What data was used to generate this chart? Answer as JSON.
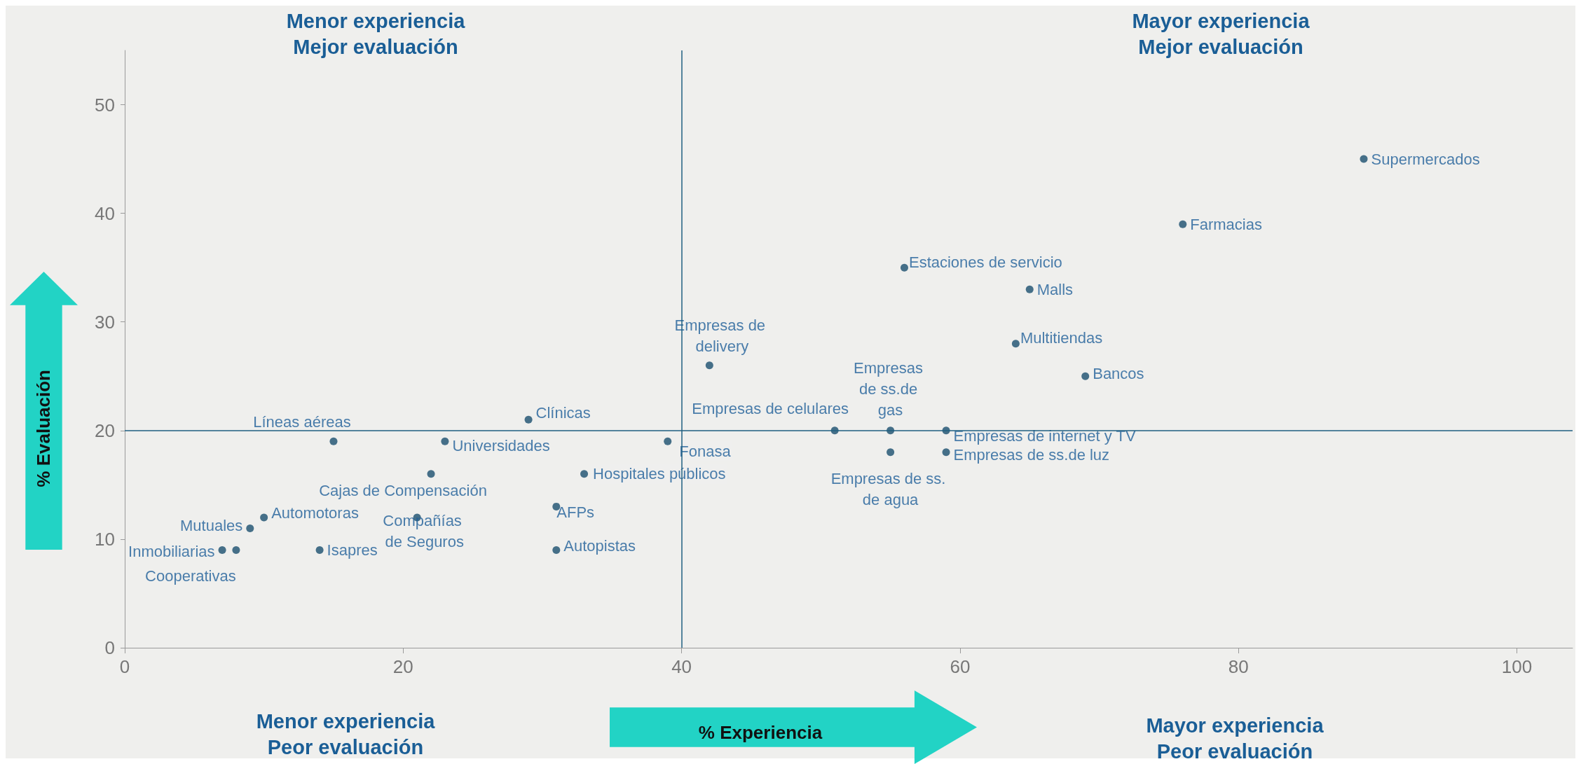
{
  "chart_data": {
    "type": "scatter",
    "xlabel": "% Experiencia",
    "ylabel": "% Evaluación",
    "annotations": [
      "Menor experiencia Mejor evaluación",
      "Mayor experiencia Mejor evaluación",
      "Menor experiencia Peor evaluación",
      "Mayor experiencia Peor evaluación"
    ],
    "xlim": [
      0,
      104
    ],
    "ylim": [
      0,
      55
    ],
    "xticks": [
      0,
      20,
      40,
      60,
      80,
      100
    ],
    "yticks": [
      0,
      10,
      20,
      30,
      40,
      50
    ],
    "grid": false,
    "marker": "circle",
    "ref_lines": [
      {
        "axis": "x",
        "value": 40,
        "color": "#1f5f80"
      },
      {
        "axis": "y",
        "value": 20,
        "color": "#1f5f80"
      }
    ],
    "series": [
      {
        "name": "Supermercados",
        "color": "#1a4f6e",
        "x": [
          89
        ],
        "values": [
          45
        ]
      },
      {
        "name": "Farmacias",
        "color": "#1a4f6e",
        "x": [
          76
        ],
        "values": [
          39
        ]
      },
      {
        "name": "Estaciones de servicio",
        "color": "#1a4f6e",
        "x": [
          56
        ],
        "values": [
          35
        ]
      },
      {
        "name": "Malls",
        "color": "#1a4f6e",
        "x": [
          65
        ],
        "values": [
          33
        ]
      },
      {
        "name": "Multitiendas",
        "color": "#1a4f6e",
        "x": [
          64
        ],
        "values": [
          28
        ]
      },
      {
        "name": "Bancos",
        "color": "#1a4f6e",
        "x": [
          69
        ],
        "values": [
          25
        ]
      },
      {
        "name": "Empresas de delivery",
        "color": "#1a4f6e",
        "x": [
          42
        ],
        "values": [
          26
        ]
      },
      {
        "name": "Empresas de celulares",
        "color": "#1a4f6e",
        "x": [
          51
        ],
        "values": [
          20
        ]
      },
      {
        "name": "Empresas de ss.de gas",
        "color": "#1a4f6e",
        "x": [
          55
        ],
        "values": [
          20
        ]
      },
      {
        "name": "Empresas de internet y TV",
        "color": "#1a4f6e",
        "x": [
          59
        ],
        "values": [
          20
        ]
      },
      {
        "name": "Empresas de ss.de luz",
        "color": "#1a4f6e",
        "x": [
          59
        ],
        "values": [
          18
        ]
      },
      {
        "name": "Empresas de ss. de agua",
        "color": "#1a4f6e",
        "x": [
          55
        ],
        "values": [
          18
        ]
      },
      {
        "name": "Fonasa",
        "color": "#1a4f6e",
        "x": [
          39
        ],
        "values": [
          19
        ]
      },
      {
        "name": "Clínicas",
        "color": "#1a4f6e",
        "x": [
          29
        ],
        "values": [
          21
        ]
      },
      {
        "name": "Universidades",
        "color": "#1a4f6e",
        "x": [
          23
        ],
        "values": [
          19
        ]
      },
      {
        "name": "Líneas aéreas",
        "color": "#1a4f6e",
        "x": [
          15
        ],
        "values": [
          19
        ]
      },
      {
        "name": "Hospitales públicos",
        "color": "#1a4f6e",
        "x": [
          33
        ],
        "values": [
          16
        ]
      },
      {
        "name": "Cajas de Compensación",
        "color": "#1a4f6e",
        "x": [
          22
        ],
        "values": [
          16
        ]
      },
      {
        "name": "AFPs",
        "color": "#1a4f6e",
        "x": [
          31
        ],
        "values": [
          13
        ]
      },
      {
        "name": "Compañías de Seguros",
        "color": "#1a4f6e",
        "x": [
          21
        ],
        "values": [
          12
        ]
      },
      {
        "name": "Autopistas",
        "color": "#1a4f6e",
        "x": [
          31
        ],
        "values": [
          9
        ]
      },
      {
        "name": "Automotoras",
        "color": "#1a4f6e",
        "x": [
          10
        ],
        "values": [
          12
        ]
      },
      {
        "name": "Mutuales",
        "color": "#1a4f6e",
        "x": [
          9
        ],
        "values": [
          11
        ]
      },
      {
        "name": "Inmobiliarias",
        "color": "#1a4f6e",
        "x": [
          7
        ],
        "values": [
          9
        ]
      },
      {
        "name": "Cooperativas",
        "color": "#1a4f6e",
        "x": [
          8
        ],
        "values": [
          9
        ]
      },
      {
        "name": "Isapres",
        "color": "#1a4f6e",
        "x": [
          14
        ],
        "values": [
          9
        ]
      }
    ]
  }
}
